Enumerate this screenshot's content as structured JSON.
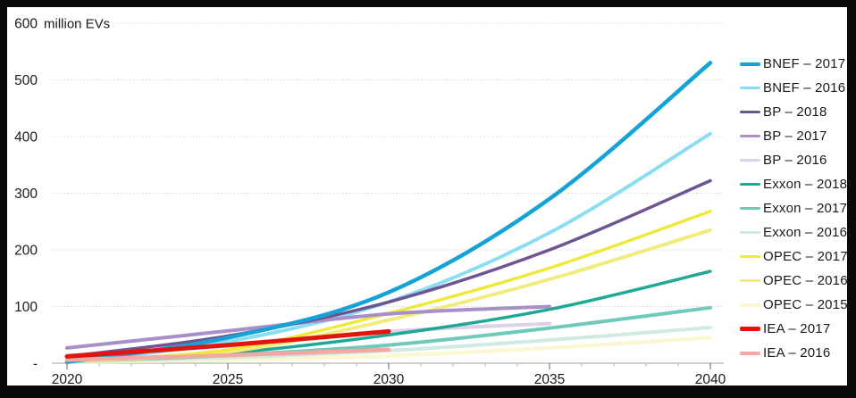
{
  "frame": {
    "background": "#0a0a0a",
    "panel_background": "#ffffff"
  },
  "chart_data": {
    "type": "line",
    "title": "",
    "units_label": "million EVs",
    "xlabel": "",
    "ylabel": "million EVs",
    "xlim": [
      2020,
      2040
    ],
    "ylim": [
      0,
      600
    ],
    "grid": "horizontal",
    "legend_position": "right",
    "colors": {
      "grid_color": "#d9d9d9",
      "axis_color": "#b3b3b3",
      "major_tick_color": "#808080",
      "text_color": "#1a1a1a"
    },
    "y_ticks": [
      {
        "value": 0,
        "label": "-"
      },
      {
        "value": 100,
        "label": "100"
      },
      {
        "value": 200,
        "label": "200"
      },
      {
        "value": 300,
        "label": "300"
      },
      {
        "value": 400,
        "label": "400"
      },
      {
        "value": 500,
        "label": "500"
      },
      {
        "value": 600,
        "label": "600"
      }
    ],
    "x_ticks_major": [
      2020,
      2025,
      2030,
      2035,
      2040
    ],
    "x_tick_minor_step": 1,
    "series": [
      {
        "name": "BNEF – 2017",
        "color": "#14a3d6",
        "width": 4.5,
        "x": [
          2020,
          2025,
          2030,
          2035,
          2040
        ],
        "values": [
          2,
          45,
          125,
          290,
          530
        ]
      },
      {
        "name": "BNEF – 2016",
        "color": "#8adef0",
        "width": 4,
        "x": [
          2020,
          2025,
          2030,
          2035,
          2040
        ],
        "values": [
          2,
          38,
          108,
          230,
          405
        ]
      },
      {
        "name": "BP – 2018",
        "color": "#6e5491",
        "width": 3.5,
        "x": [
          2020,
          2025,
          2030,
          2035,
          2040
        ],
        "values": [
          12,
          48,
          108,
          200,
          322
        ]
      },
      {
        "name": "BP – 2017",
        "color": "#a98fc7",
        "width": 4,
        "x": [
          2020,
          2025,
          2030,
          2035
        ],
        "values": [
          27,
          57,
          87,
          100
        ]
      },
      {
        "name": "BP – 2016",
        "color": "#ddd1e9",
        "width": 4,
        "x": [
          2020,
          2025,
          2030,
          2035
        ],
        "values": [
          9,
          32,
          56,
          70
        ]
      },
      {
        "name": "Exxon – 2018",
        "color": "#1fa893",
        "width": 3.5,
        "x": [
          2020,
          2025,
          2030,
          2035,
          2040
        ],
        "values": [
          3,
          18,
          50,
          95,
          162
        ]
      },
      {
        "name": "Exxon – 2017",
        "color": "#6ecabb",
        "width": 4,
        "x": [
          2020,
          2025,
          2030,
          2035,
          2040
        ],
        "values": [
          3,
          14,
          32,
          62,
          98
        ]
      },
      {
        "name": "Exxon – 2016",
        "color": "#cfe9e3",
        "width": 4,
        "x": [
          2020,
          2025,
          2030,
          2035,
          2040
        ],
        "values": [
          2,
          10,
          22,
          41,
          63
        ]
      },
      {
        "name": "OPEC – 2017",
        "color": "#efe93e",
        "width": 3.5,
        "x": [
          2020,
          2025,
          2030,
          2035,
          2040
        ],
        "values": [
          4,
          24,
          88,
          168,
          268
        ]
      },
      {
        "name": "OPEC – 2016",
        "color": "#f0ec7d",
        "width": 4,
        "x": [
          2020,
          2025,
          2030,
          2035,
          2040
        ],
        "values": [
          3,
          20,
          76,
          148,
          235
        ]
      },
      {
        "name": "OPEC – 2015",
        "color": "#faf8d2",
        "width": 4.5,
        "x": [
          2020,
          2025,
          2030,
          2035,
          2040
        ],
        "values": [
          2,
          6,
          13,
          27,
          45
        ]
      },
      {
        "name": "IEA – 2017",
        "color": "#e2150c",
        "width": 5,
        "x": [
          2020,
          2025,
          2030
        ],
        "values": [
          12,
          32,
          56
        ]
      },
      {
        "name": "IEA – 2016",
        "color": "#f4a8a1",
        "width": 4.5,
        "x": [
          2020,
          2025,
          2030
        ],
        "values": [
          6,
          14,
          24
        ]
      }
    ],
    "draw_order": [
      10,
      7,
      4,
      6,
      5,
      9,
      8,
      1,
      3,
      2,
      0,
      12,
      11
    ]
  }
}
